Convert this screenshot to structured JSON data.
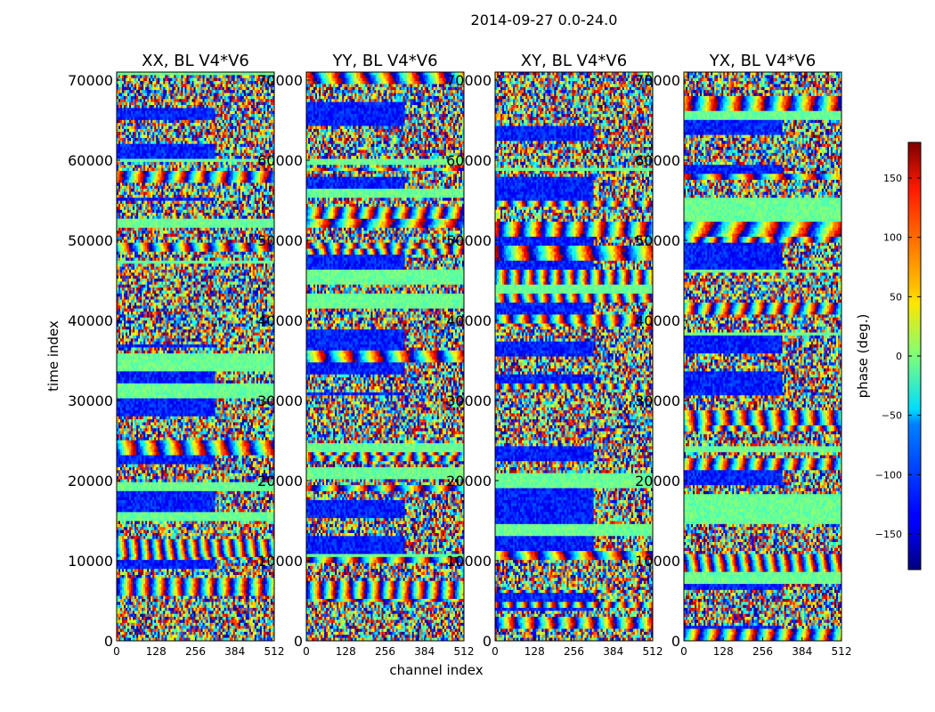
{
  "figure": {
    "suptitle": "2014-09-27 0.0-24.0"
  },
  "chart_data": {
    "type": "heatmap",
    "title": "2014-09-27 0.0-24.0",
    "xlabel": "channel index",
    "ylabel": "time index",
    "xlim": [
      0,
      512
    ],
    "ylim": [
      0,
      71000
    ],
    "xticks": [
      0,
      128,
      256,
      384,
      512
    ],
    "yticks": [
      0,
      10000,
      20000,
      30000,
      40000,
      50000,
      60000,
      70000
    ],
    "panels": [
      {
        "title": "XX, BL V4*V6"
      },
      {
        "title": "YY, BL V4*V6"
      },
      {
        "title": "XY, BL V4*V6"
      },
      {
        "title": "YX, BL V4*V6"
      }
    ],
    "colorbar": {
      "label": "phase (deg.)",
      "range": [
        -180,
        180
      ],
      "ticks": [
        -150,
        -100,
        -50,
        0,
        50,
        100,
        150
      ],
      "tick_labels": [
        "−150",
        "−100",
        "−50",
        "0",
        "50",
        "100",
        "150"
      ],
      "colormap": "jet"
    }
  }
}
